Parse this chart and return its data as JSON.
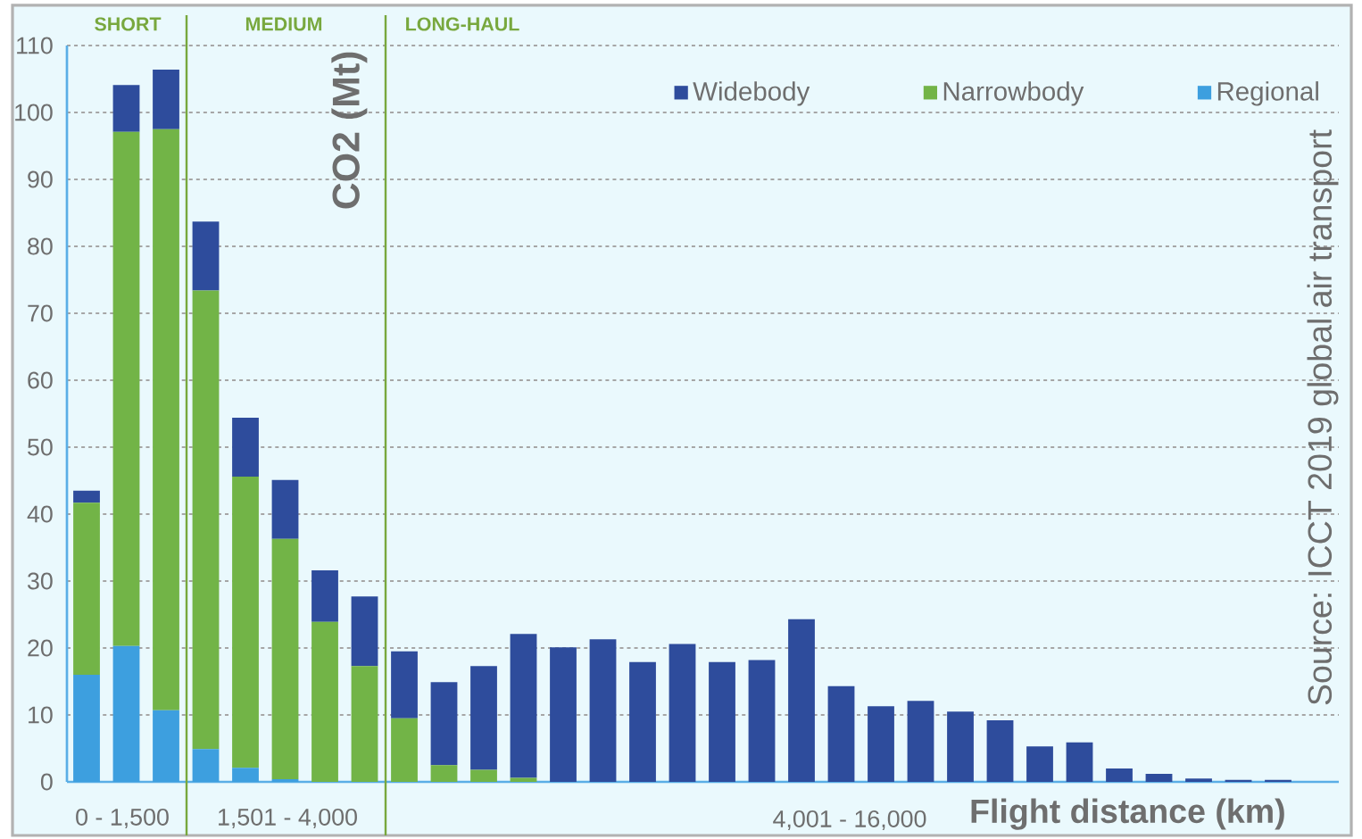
{
  "chart_data": {
    "type": "bar",
    "stacked": true,
    "xlabel": "Flight distance (km)",
    "ylabel": "CO2  (Mt)",
    "categories": [
      null,
      null,
      null,
      null,
      null,
      null,
      null,
      null,
      null,
      null,
      null,
      null,
      null,
      null,
      null,
      null,
      null,
      null,
      null,
      null,
      null,
      null,
      null,
      null,
      null,
      null,
      null,
      null,
      null,
      null,
      null
    ],
    "series": [
      {
        "name": "Regional",
        "color": "#3d9fdf",
        "values": [
          16,
          20.3,
          10.7,
          4.9,
          2.1,
          0.4,
          0,
          0,
          0,
          0,
          0,
          0,
          0,
          0,
          0,
          0,
          0,
          0,
          0,
          0,
          0,
          0,
          0,
          0,
          0,
          0,
          0,
          0,
          0,
          0,
          0
        ]
      },
      {
        "name": "Narrowbody",
        "color": "#72b447",
        "values": [
          25.7,
          76.8,
          86.8,
          68.5,
          43.5,
          35.9,
          23.9,
          17.3,
          9.5,
          2.5,
          1.8,
          0.6,
          0,
          0,
          0,
          0,
          0,
          0,
          0,
          0,
          0,
          0,
          0,
          0,
          0,
          0,
          0,
          0,
          0,
          0,
          0
        ]
      },
      {
        "name": "Widebody",
        "color": "#2e4c9c",
        "values": [
          1.8,
          7.0,
          8.9,
          10.3,
          8.8,
          8.8,
          7.7,
          10.4,
          10.0,
          12.4,
          15.5,
          21.5,
          20.1,
          21.3,
          17.9,
          20.6,
          17.9,
          18.2,
          24.3,
          14.3,
          11.3,
          12.1,
          10.5,
          9.2,
          5.3,
          5.9,
          2.0,
          1.2,
          0.5,
          0.3,
          0.3
        ]
      }
    ],
    "ylim": [
      0,
      110
    ],
    "yticks": [
      0,
      10,
      20,
      30,
      40,
      50,
      60,
      70,
      80,
      90,
      100,
      110
    ],
    "grid": "y",
    "legend": "top right",
    "annotations": [
      "SHORT",
      "MEDIUM",
      "LONG-HAUL",
      "0 -  1,500",
      "1,501 - 4,000",
      "4,001 - 16,000",
      "Source:  ICCT 2019 global air transport"
    ]
  }
}
